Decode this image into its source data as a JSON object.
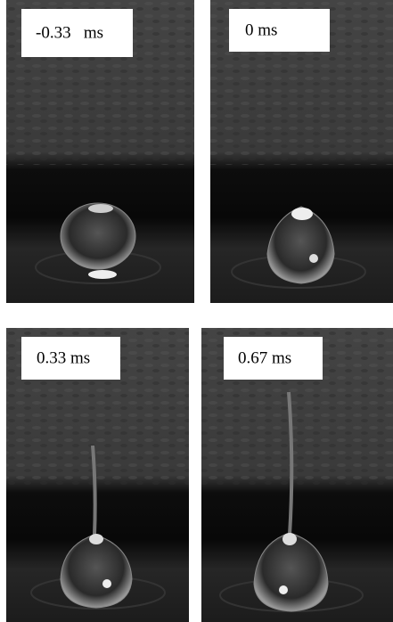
{
  "panels": [
    {
      "label": "-0.33   ms"
    },
    {
      "label": "0 ms"
    },
    {
      "label": "0.33 ms"
    },
    {
      "label": "0.67 ms"
    }
  ]
}
